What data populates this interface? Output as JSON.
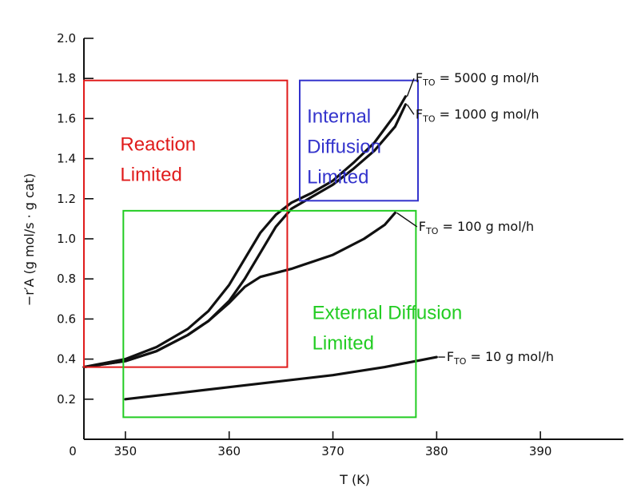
{
  "chart_data": {
    "type": "line",
    "xlabel": "T (K)",
    "ylabel": "−r′A (g mol/s · g cat)",
    "xlim": [
      346,
      398
    ],
    "ylim": [
      0,
      2.0
    ],
    "x_ticks": [
      {
        "v": 350,
        "label": "350"
      },
      {
        "v": 360,
        "label": "360"
      },
      {
        "v": 370,
        "label": "370"
      },
      {
        "v": 380,
        "label": "380"
      },
      {
        "v": 390,
        "label": "390"
      }
    ],
    "x_origin_label": "0",
    "y_ticks": [
      {
        "v": 0.2,
        "label": "0.2"
      },
      {
        "v": 0.4,
        "label": "0.4"
      },
      {
        "v": 0.6,
        "label": "0.6"
      },
      {
        "v": 0.8,
        "label": "0.8"
      },
      {
        "v": 1.0,
        "label": "1.0"
      },
      {
        "v": 1.2,
        "label": "1.2"
      },
      {
        "v": 1.4,
        "label": "1.4"
      },
      {
        "v": 1.6,
        "label": "1.6"
      },
      {
        "v": 1.8,
        "label": "1.8"
      },
      {
        "v": 2.0,
        "label": "2.0"
      }
    ],
    "series": [
      {
        "key": "f5000",
        "label_pre": "F",
        "label_sub": "TO",
        "label_post": " = 5000 g mol/h",
        "label_at": [
          377.5,
          1.78
        ],
        "points": [
          [
            346,
            0.36
          ],
          [
            350,
            0.4
          ],
          [
            353,
            0.46
          ],
          [
            356,
            0.55
          ],
          [
            358,
            0.64
          ],
          [
            360,
            0.77
          ],
          [
            361.5,
            0.9
          ],
          [
            363,
            1.03
          ],
          [
            364.5,
            1.12
          ],
          [
            366,
            1.18
          ],
          [
            368,
            1.23
          ],
          [
            370,
            1.29
          ],
          [
            372,
            1.38
          ],
          [
            374,
            1.48
          ],
          [
            376,
            1.62
          ],
          [
            377,
            1.71
          ]
        ]
      },
      {
        "key": "f1000",
        "label_pre": "F",
        "label_sub": "TO",
        "label_post": " = 1000 g mol/h",
        "label_at": [
          377.5,
          1.6
        ],
        "points": [
          [
            346,
            0.36
          ],
          [
            350,
            0.39
          ],
          [
            353,
            0.44
          ],
          [
            356,
            0.52
          ],
          [
            358,
            0.59
          ],
          [
            360,
            0.69
          ],
          [
            361.5,
            0.8
          ],
          [
            363,
            0.93
          ],
          [
            364.5,
            1.06
          ],
          [
            366,
            1.15
          ],
          [
            368,
            1.21
          ],
          [
            370,
            1.27
          ],
          [
            372,
            1.35
          ],
          [
            374,
            1.44
          ],
          [
            376,
            1.56
          ],
          [
            377,
            1.67
          ]
        ]
      },
      {
        "key": "f100",
        "label_pre": "F",
        "label_sub": "TO",
        "label_post": " = 100 g mol/h",
        "label_at": [
          377.8,
          1.04
        ],
        "points": [
          [
            346,
            0.36
          ],
          [
            350,
            0.39
          ],
          [
            353,
            0.44
          ],
          [
            356,
            0.52
          ],
          [
            358,
            0.59
          ],
          [
            360,
            0.68
          ],
          [
            361.5,
            0.76
          ],
          [
            363,
            0.81
          ],
          [
            366,
            0.85
          ],
          [
            370,
            0.92
          ],
          [
            373,
            1.0
          ],
          [
            375,
            1.07
          ],
          [
            376,
            1.13
          ]
        ]
      },
      {
        "key": "f10",
        "label_pre": "F",
        "label_sub": "TO",
        "label_post": " = 10 g mol/h",
        "label_at": [
          380.5,
          0.39
        ],
        "points": [
          [
            350,
            0.2
          ],
          [
            355,
            0.23
          ],
          [
            360,
            0.26
          ],
          [
            365,
            0.29
          ],
          [
            370,
            0.32
          ],
          [
            375,
            0.36
          ],
          [
            380,
            0.41
          ]
        ]
      }
    ],
    "regions": [
      {
        "key": "reaction",
        "lines": [
          "Reaction",
          "Limited"
        ],
        "color": "#e01b1b",
        "x": [
          346,
          365.6
        ],
        "y": [
          0.36,
          1.79
        ],
        "text_at": [
          349.5,
          1.44
        ]
      },
      {
        "key": "internal",
        "lines": [
          "Internal",
          "Diffusion",
          "Limited"
        ],
        "color": "#3333cc",
        "x": [
          366.8,
          378.2
        ],
        "y": [
          1.19,
          1.79
        ],
        "text_at": [
          367.5,
          1.58
        ]
      },
      {
        "key": "external",
        "lines": [
          "External Diffusion",
          "Limited"
        ],
        "color": "#22cc22",
        "x": [
          349.8,
          378.0
        ],
        "y": [
          0.11,
          1.14
        ],
        "text_at": [
          368.0,
          0.6
        ]
      }
    ]
  }
}
